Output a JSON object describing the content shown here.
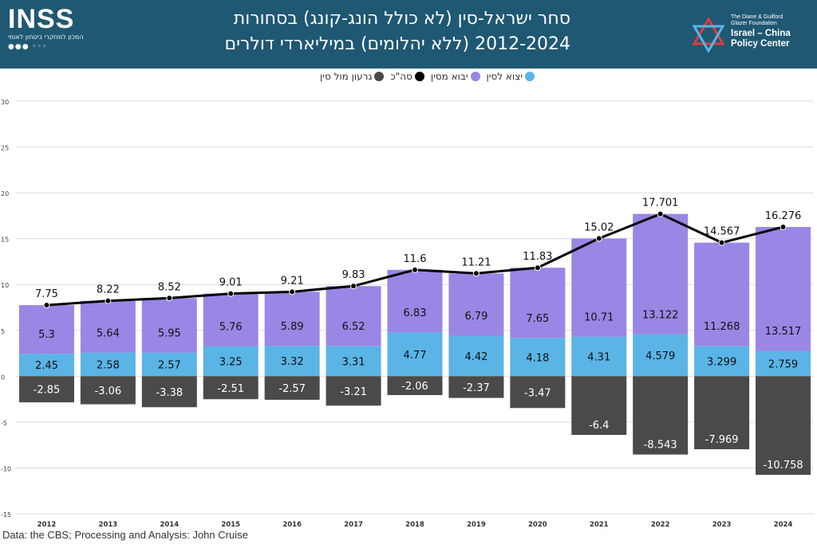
{
  "header": {
    "logo_text": "INSS",
    "logo_subtitle": "המכון למחקרי ביטחון לאומי",
    "title_line1": "סחר ישראל-סין (לא כולל הונג-קונג) בסחורות",
    "title_line2": "2012-2024 (ללא יהלומים) במיליארדי דולרים",
    "partner_small1": "The Diane & Guilford",
    "partner_small2": "Glazer Foundation",
    "partner_big1": "Israel – China",
    "partner_big2": "Policy Center"
  },
  "source_text": "Data: the CBS; Processing and Analysis: John Cruise",
  "colors": {
    "header_bg": "#1f5873",
    "exports": "#5ab4e5",
    "imports": "#9a86e4",
    "total": "#000000",
    "deficit": "#4a4a4a"
  },
  "chart_data": {
    "type": "bar",
    "stacked": true,
    "categories": [
      "2012",
      "2013",
      "2014",
      "2015",
      "2016",
      "2017",
      "2018",
      "2019",
      "2020",
      "2021",
      "2022",
      "2023",
      "2024"
    ],
    "series": [
      {
        "name": "יצוא לסין",
        "color": "#5ab4e5",
        "values": [
          2.45,
          2.58,
          2.57,
          3.25,
          3.32,
          3.31,
          4.77,
          4.42,
          4.18,
          4.31,
          4.579,
          3.299,
          2.759
        ]
      },
      {
        "name": "יבוא מסין",
        "color": "#9a86e4",
        "values": [
          5.3,
          5.64,
          5.95,
          5.76,
          5.89,
          6.52,
          6.83,
          6.79,
          7.65,
          10.71,
          13.122,
          11.268,
          13.517
        ]
      },
      {
        "name": "סה\"כ",
        "type": "line",
        "color": "#000000",
        "values": [
          7.75,
          8.22,
          8.52,
          9.01,
          9.21,
          9.83,
          11.6,
          11.21,
          11.83,
          15.02,
          17.701,
          14.567,
          16.276
        ]
      },
      {
        "name": "גרעון מול סין",
        "color": "#4a4a4a",
        "values": [
          -2.85,
          -3.06,
          -3.38,
          -2.51,
          -2.57,
          -3.21,
          -2.06,
          -2.37,
          -3.47,
          -6.4,
          -8.543,
          -7.969,
          -10.758
        ]
      }
    ],
    "legend_order": [
      "יצוא לסין",
      "יבוא מסין",
      "סה\"כ",
      "גרעון מול סין"
    ],
    "yticks": [
      "30",
      "25",
      "20",
      "15",
      "10",
      "5",
      "0",
      "-5",
      "-10",
      "-15"
    ],
    "ylim": [
      -15,
      30
    ],
    "grid": true,
    "legend_position": "top"
  }
}
